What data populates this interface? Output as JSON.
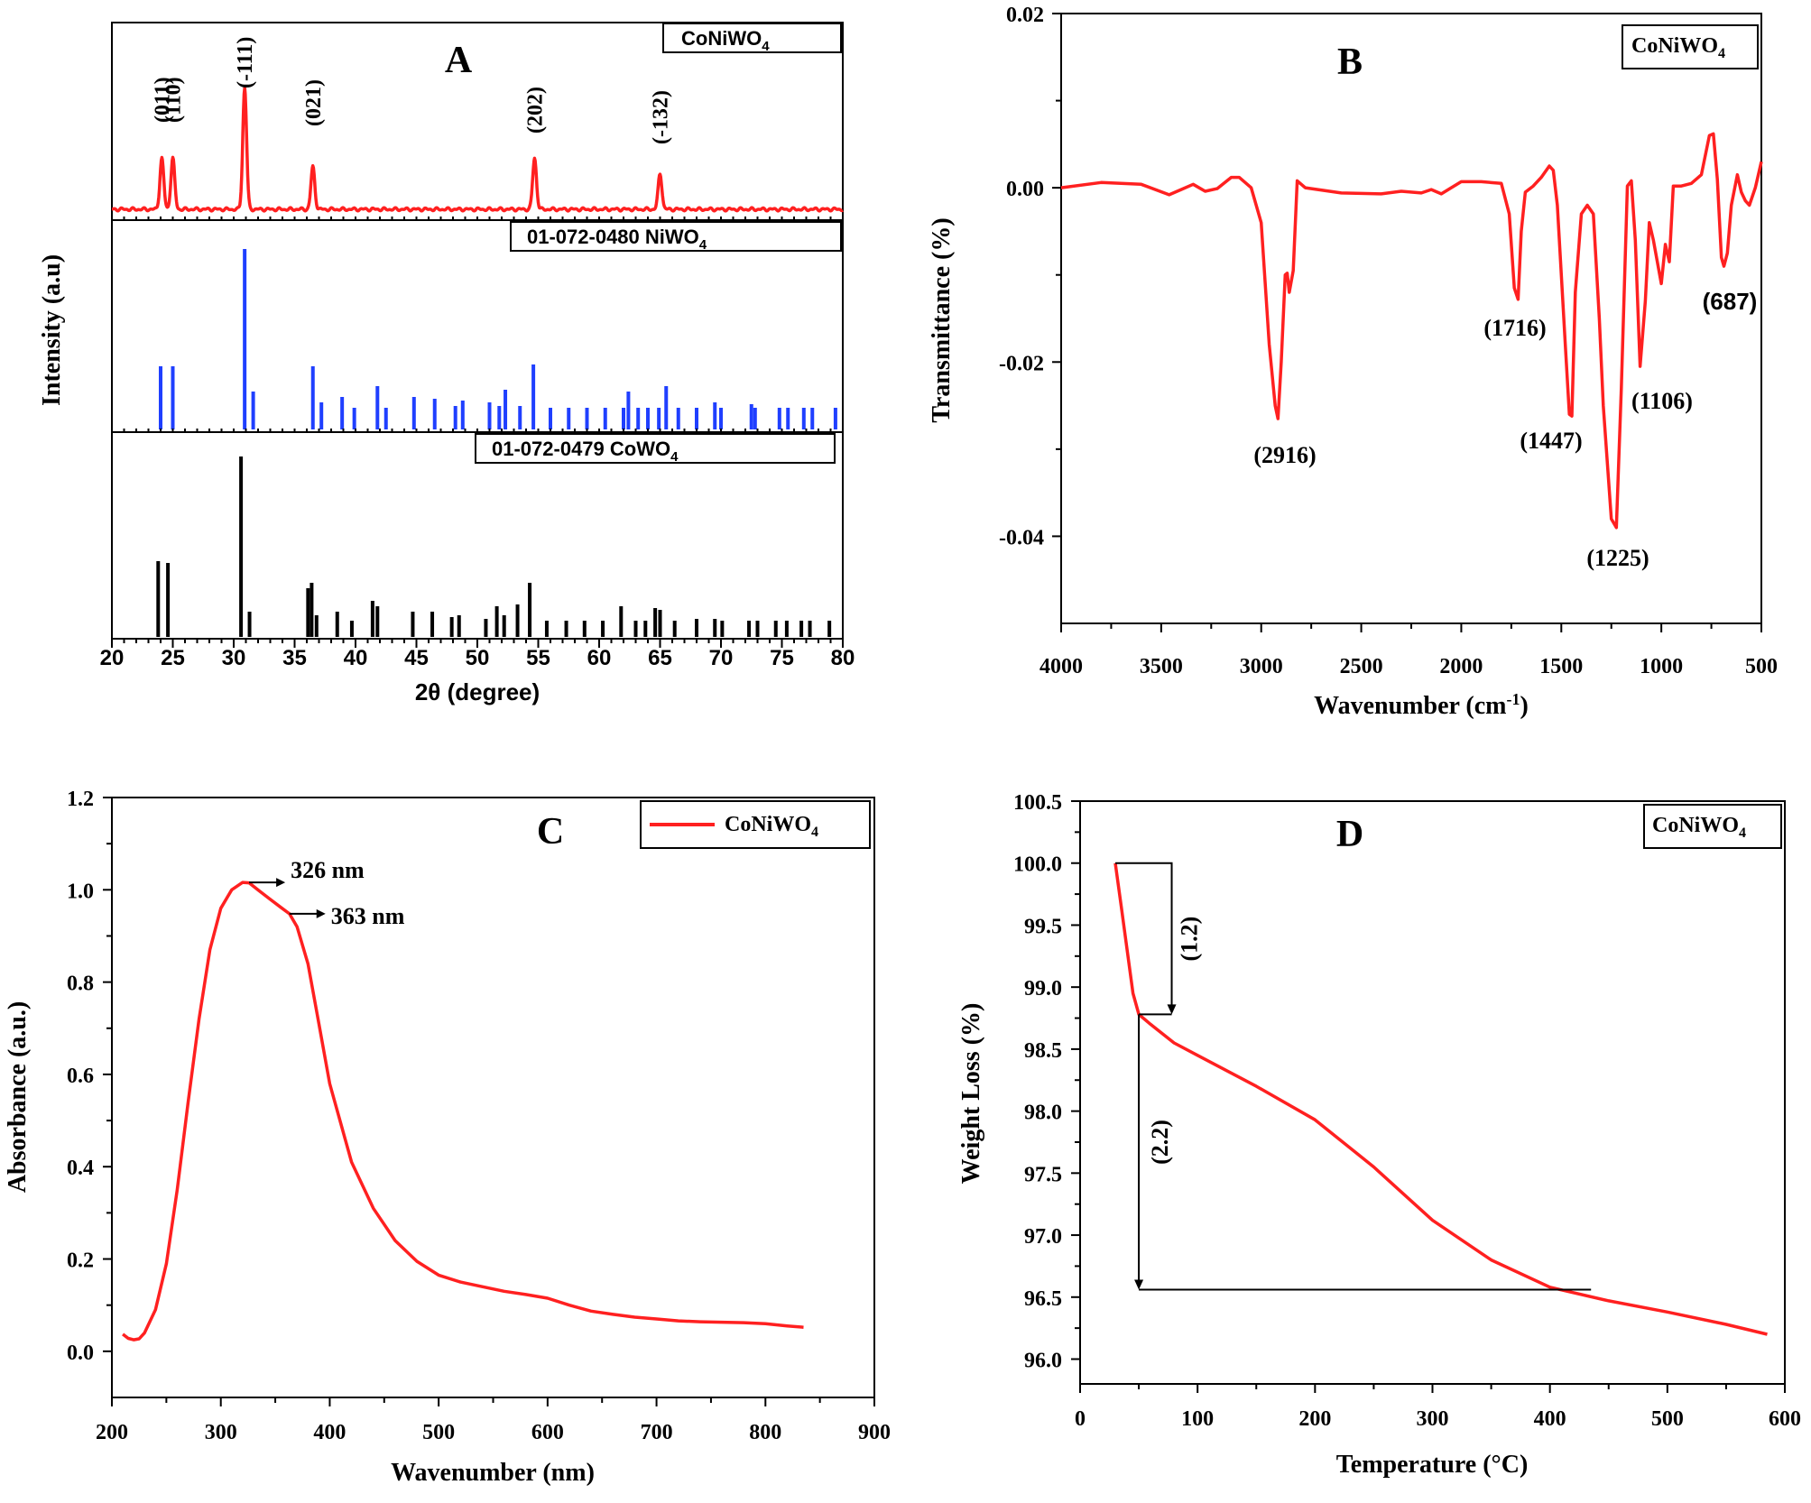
{
  "panels": {
    "A": {
      "label": "A",
      "ylabel": "Intensity (a.u)",
      "xlabel": "2θ (degree)",
      "xticks": [
        "20",
        "25",
        "30",
        "35",
        "40",
        "45",
        "50",
        "55",
        "60",
        "65",
        "70",
        "75",
        "80"
      ],
      "legend_top": "CoNiWO",
      "legend_top_sub": "4",
      "legend_mid": "01-072-0480 NiWO",
      "legend_mid_sub": "4",
      "legend_bot": "01-072-0479 CoWO",
      "legend_bot_sub": "4",
      "peak_labels": [
        "(011)",
        "(110)",
        "(-111)",
        "(021)",
        "(202)",
        "(-132)"
      ]
    },
    "B": {
      "label": "B",
      "ylabel": "Transmittance (%)",
      "xlabel_main": "Wavenumber (cm",
      "xlabel_sup": "-1",
      "xlabel_end": ")",
      "legend": "CoNiWO",
      "legend_sub": "4",
      "xticks": [
        "4000",
        "3500",
        "3000",
        "2500",
        "2000",
        "1500",
        "1000",
        "500"
      ],
      "yticks": [
        "0.02",
        "0.00",
        "-0.02",
        "-0.04"
      ],
      "annotations": [
        "(2916)",
        "(1716)",
        "(1447)",
        "(1225)",
        "(1106)",
        "(687)"
      ]
    },
    "C": {
      "label": "C",
      "ylabel": "Absorbance (a.u.)",
      "xlabel": "Wavenumber (nm)",
      "legend": "CoNiWO",
      "legend_sub": "4",
      "xticks": [
        "200",
        "300",
        "400",
        "500",
        "600",
        "700",
        "800",
        "900"
      ],
      "yticks": [
        "0.0",
        "0.2",
        "0.4",
        "0.6",
        "0.8",
        "1.0",
        "1.2"
      ],
      "annotations": [
        "326 nm",
        "363 nm"
      ]
    },
    "D": {
      "label": "D",
      "ylabel": "Weight Loss (%)",
      "xlabel": "Temperature (°C)",
      "legend": "CoNiWO",
      "legend_sub": "4",
      "xticks": [
        "0",
        "100",
        "200",
        "300",
        "400",
        "500",
        "600"
      ],
      "yticks": [
        "96.0",
        "96.5",
        "97.0",
        "97.5",
        "98.0",
        "98.5",
        "99.0",
        "99.5",
        "100.0",
        "100.5"
      ],
      "annotations": [
        "(1.2)",
        "(2.2)"
      ]
    }
  },
  "colors": {
    "curve": "#ff2020",
    "niwo4": "#1f3fff",
    "cowo4": "#000000"
  },
  "chart_data": [
    {
      "panel": "A",
      "type": "line",
      "title": "A",
      "xlabel": "2θ (degree)",
      "ylabel": "Intensity (a.u)",
      "xlim": [
        20,
        80
      ],
      "series": [
        {
          "name": "CoNiWO4",
          "peaks": [
            {
              "x": 24.1,
              "h": 0.42,
              "label": "(011)"
            },
            {
              "x": 25.0,
              "h": 0.42,
              "label": "(110)"
            },
            {
              "x": 30.9,
              "h": 1.0,
              "label": "(-111)"
            },
            {
              "x": 36.5,
              "h": 0.35,
              "label": "(021)"
            },
            {
              "x": 54.7,
              "h": 0.42,
              "label": "(202)"
            },
            {
              "x": 65.0,
              "h": 0.29,
              "label": "(-132)"
            }
          ]
        },
        {
          "name": "01-072-0480 NiWO4",
          "type": "stick",
          "x": [
            24.0,
            25.0,
            30.9,
            31.6,
            36.5,
            37.2,
            38.9,
            39.9,
            41.8,
            42.5,
            44.8,
            46.5,
            48.2,
            48.8,
            51.0,
            51.8,
            52.3,
            53.5,
            54.6,
            56.0,
            57.5,
            59.0,
            60.5,
            62.0,
            62.4,
            63.2,
            64.0,
            64.9,
            65.5,
            66.5,
            68.0,
            69.5,
            70.0,
            72.5,
            72.8,
            74.8,
            75.5,
            76.8,
            77.5,
            79.4
          ],
          "h": [
            0.35,
            0.35,
            1.0,
            0.21,
            0.35,
            0.15,
            0.18,
            0.12,
            0.24,
            0.12,
            0.18,
            0.17,
            0.13,
            0.16,
            0.15,
            0.13,
            0.22,
            0.13,
            0.36,
            0.12,
            0.12,
            0.12,
            0.12,
            0.12,
            0.21,
            0.12,
            0.12,
            0.12,
            0.24,
            0.12,
            0.12,
            0.15,
            0.12,
            0.14,
            0.12,
            0.12,
            0.12,
            0.12,
            0.12,
            0.12
          ]
        },
        {
          "name": "01-072-0479 CoWO4",
          "type": "stick",
          "x": [
            23.8,
            24.6,
            30.6,
            31.3,
            36.1,
            36.4,
            36.8,
            38.5,
            39.7,
            41.4,
            41.8,
            44.7,
            46.3,
            47.9,
            48.5,
            50.7,
            51.6,
            52.2,
            53.3,
            54.3,
            55.7,
            57.3,
            58.8,
            60.3,
            61.8,
            63.0,
            63.8,
            64.6,
            65.0,
            66.2,
            68.0,
            69.5,
            70.1,
            72.3,
            73.0,
            74.5,
            75.4,
            76.6,
            77.3,
            78.9
          ],
          "h": [
            0.42,
            0.41,
            1.0,
            0.14,
            0.27,
            0.3,
            0.12,
            0.14,
            0.09,
            0.2,
            0.17,
            0.14,
            0.14,
            0.11,
            0.12,
            0.1,
            0.17,
            0.12,
            0.18,
            0.3,
            0.09,
            0.09,
            0.09,
            0.09,
            0.17,
            0.09,
            0.09,
            0.16,
            0.15,
            0.09,
            0.1,
            0.1,
            0.09,
            0.09,
            0.09,
            0.09,
            0.09,
            0.09,
            0.09,
            0.09
          ]
        }
      ]
    },
    {
      "panel": "B",
      "type": "line",
      "title": "B",
      "xlabel": "Wavenumber (cm-1)",
      "ylabel": "Transmittance (%)",
      "xlim": [
        4000,
        500
      ],
      "ylim": [
        -0.05,
        0.02
      ],
      "series": [
        {
          "name": "CoNiWO4",
          "x": [
            4000,
            3800,
            3600,
            3460,
            3400,
            3340,
            3280,
            3220,
            3150,
            3110,
            3050,
            3000,
            2960,
            2930,
            2916,
            2900,
            2880,
            2870,
            2860,
            2840,
            2820,
            2780,
            2600,
            2400,
            2300,
            2200,
            2150,
            2100,
            2050,
            2000,
            1900,
            1800,
            1760,
            1735,
            1716,
            1700,
            1680,
            1640,
            1600,
            1560,
            1540,
            1520,
            1480,
            1460,
            1447,
            1430,
            1400,
            1370,
            1340,
            1310,
            1290,
            1250,
            1225,
            1200,
            1170,
            1150,
            1130,
            1106,
            1080,
            1060,
            1040,
            1000,
            980,
            960,
            940,
            900,
            850,
            800,
            760,
            740,
            720,
            700,
            687,
            670,
            650,
            620,
            600,
            580,
            560,
            530,
            500
          ],
          "y": [
            0,
            0.0006,
            0.0004,
            -0.0008,
            -0.0002,
            0.0004,
            -0.0004,
            -0.0001,
            0.0012,
            0.0012,
            0,
            -0.004,
            -0.018,
            -0.025,
            -0.0265,
            -0.02,
            -0.01,
            -0.0098,
            -0.012,
            -0.0095,
            0.0008,
            0,
            -0.0006,
            -0.0007,
            -0.0004,
            -0.0006,
            -0.0002,
            -0.0007,
            0,
            0.0007,
            0.0007,
            0.0005,
            -0.003,
            -0.0115,
            -0.0128,
            -0.005,
            -0.0005,
            0.0002,
            0.0012,
            0.0025,
            0.002,
            -0.002,
            -0.018,
            -0.026,
            -0.0262,
            -0.012,
            -0.003,
            -0.002,
            -0.003,
            -0.015,
            -0.025,
            -0.038,
            -0.039,
            -0.023,
            0.0002,
            0.0008,
            -0.006,
            -0.0205,
            -0.013,
            -0.004,
            -0.006,
            -0.011,
            -0.0065,
            -0.0085,
            0.0002,
            0.0002,
            0.0005,
            0.0015,
            0.006,
            0.0062,
            0.001,
            -0.008,
            -0.009,
            -0.0075,
            -0.002,
            0.0015,
            -0.0005,
            -0.0015,
            -0.002,
            0,
            0.003
          ]
        }
      ],
      "annotations": [
        {
          "text": "(2916)",
          "x": 2916,
          "y": -0.0265
        },
        {
          "text": "(1716)",
          "x": 1716,
          "y": -0.0128
        },
        {
          "text": "(1447)",
          "x": 1447,
          "y": -0.0262
        },
        {
          "text": "(1225)",
          "x": 1225,
          "y": -0.039
        },
        {
          "text": "(1106)",
          "x": 1106,
          "y": -0.0205
        },
        {
          "text": "(687)",
          "x": 687,
          "y": -0.009
        }
      ]
    },
    {
      "panel": "C",
      "type": "line",
      "title": "C",
      "xlabel": "Wavenumber (nm)",
      "ylabel": "Absorbance (a.u.)",
      "xlim": [
        200,
        900
      ],
      "ylim": [
        -0.1,
        1.2
      ],
      "series": [
        {
          "name": "CoNiWO4",
          "x": [
            210,
            215,
            220,
            225,
            230,
            240,
            250,
            260,
            270,
            280,
            290,
            300,
            310,
            320,
            326,
            335,
            345,
            355,
            363,
            370,
            380,
            390,
            400,
            420,
            440,
            460,
            480,
            500,
            520,
            540,
            560,
            580,
            600,
            620,
            640,
            660,
            680,
            700,
            720,
            740,
            760,
            780,
            800,
            820,
            835
          ],
          "y": [
            0.037,
            0.028,
            0.025,
            0.027,
            0.04,
            0.09,
            0.19,
            0.35,
            0.54,
            0.72,
            0.87,
            0.96,
            1.0,
            1.016,
            1.015,
            0.998,
            0.98,
            0.962,
            0.948,
            0.92,
            0.84,
            0.71,
            0.58,
            0.41,
            0.31,
            0.24,
            0.195,
            0.165,
            0.15,
            0.14,
            0.13,
            0.123,
            0.115,
            0.1,
            0.087,
            0.08,
            0.074,
            0.07,
            0.066,
            0.064,
            0.063,
            0.062,
            0.06,
            0.055,
            0.052
          ]
        }
      ],
      "annotations": [
        {
          "text": "326 nm",
          "x": 326,
          "y": 1.016
        },
        {
          "text": "363 nm",
          "x": 363,
          "y": 0.948
        }
      ]
    },
    {
      "panel": "D",
      "type": "line",
      "title": "D",
      "xlabel": "Temperature (°C)",
      "ylabel": "Weight Loss (%)",
      "xlim": [
        0,
        600
      ],
      "ylim": [
        95.8,
        100.5
      ],
      "series": [
        {
          "name": "CoNiWO4",
          "x": [
            30,
            35,
            40,
            45,
            50,
            60,
            80,
            100,
            150,
            200,
            250,
            300,
            350,
            400,
            450,
            500,
            550,
            585
          ],
          "y": [
            100.0,
            99.65,
            99.3,
            98.95,
            98.78,
            98.7,
            98.55,
            98.45,
            98.2,
            97.93,
            97.55,
            97.12,
            96.8,
            96.58,
            96.47,
            96.38,
            96.28,
            96.2
          ]
        }
      ],
      "annotations": [
        {
          "text": "(1.2)",
          "from": 100.0,
          "to": 98.78
        },
        {
          "text": "(2.2)",
          "from": 98.78,
          "to": 96.56
        }
      ]
    }
  ]
}
